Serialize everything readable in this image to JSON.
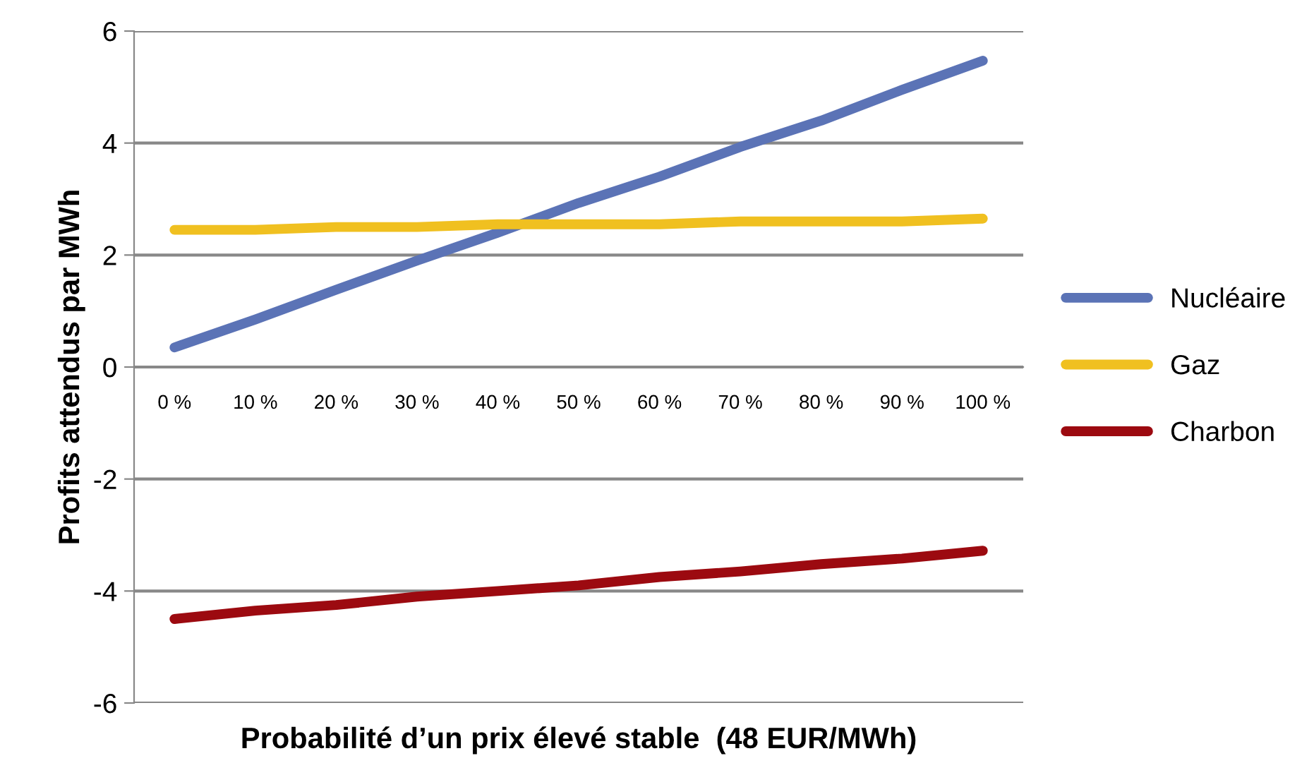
{
  "chart_data": {
    "type": "line",
    "xlabel": "Probabilité d’un prix élevé stable  (48 EUR/MWh)",
    "ylabel": "Profits attendus par MWh",
    "categories": [
      "0 %",
      "10 %",
      "20 %",
      "30 %",
      "40 %",
      "50 %",
      "60 %",
      "70 %",
      "80 %",
      "90 %",
      "100 %"
    ],
    "series": [
      {
        "name": "Nucléaire",
        "color": "#5b73b6",
        "values": [
          0.35,
          0.85,
          1.38,
          1.9,
          2.4,
          2.93,
          3.4,
          3.93,
          4.4,
          4.95,
          5.47
        ]
      },
      {
        "name": "Gaz",
        "color": "#f0c020",
        "values": [
          2.45,
          2.45,
          2.5,
          2.5,
          2.55,
          2.55,
          2.55,
          2.6,
          2.6,
          2.6,
          2.65
        ]
      },
      {
        "name": "Charbon",
        "color": "#9c0a10",
        "values": [
          -4.5,
          -4.35,
          -4.25,
          -4.1,
          -4.0,
          -3.9,
          -3.75,
          -3.65,
          -3.52,
          -3.42,
          -3.28
        ]
      }
    ],
    "ylim": [
      -6,
      6
    ],
    "yticks": [
      -6,
      -4,
      -2,
      0,
      2,
      4,
      6
    ],
    "grid": "y",
    "legend": "right",
    "marker": "none",
    "line_style": "solid"
  }
}
